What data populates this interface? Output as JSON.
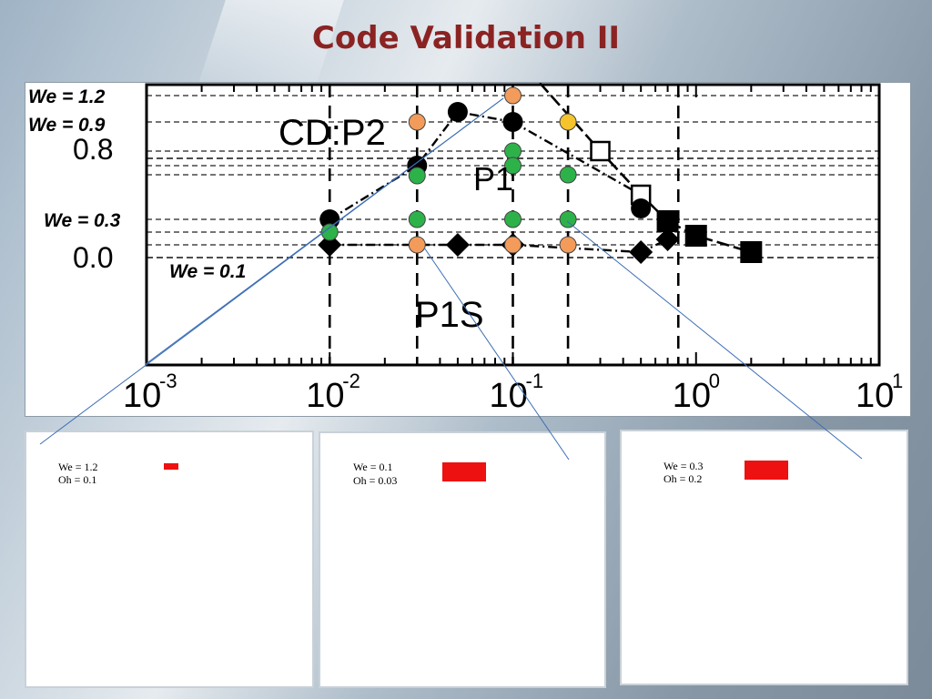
{
  "slide": {
    "title": "Code Validation II"
  },
  "chart_data": {
    "type": "scatter",
    "title": "",
    "xlabel": "",
    "ylabel": "",
    "x_scale": "log",
    "xlim": [
      0.001,
      10
    ],
    "x_ticks": [
      0.001,
      0.01,
      0.1,
      1,
      10
    ],
    "x_tick_labels": [
      {
        "base": "10",
        "exp": "-3"
      },
      {
        "base": "10",
        "exp": "-2"
      },
      {
        "base": "10",
        "exp": "-1"
      },
      {
        "base": "10",
        "exp": "0"
      },
      {
        "base": "10",
        "exp": "1"
      }
    ],
    "y_tick_labels": [
      {
        "value": 0.0,
        "label": "0.0"
      },
      {
        "value": 0.8,
        "label": "0.8"
      }
    ],
    "we_levels": [
      {
        "value": 1.2,
        "label": "We = 1.2"
      },
      {
        "value": 0.9,
        "label": "We = 0.9"
      },
      {
        "value": 0.3,
        "label": "We = 0.3"
      },
      {
        "value": 0.1,
        "label": "We = 0.1"
      }
    ],
    "region_labels": [
      "CD:P2",
      "P1",
      "P1S"
    ],
    "boundary_x": [
      0.01,
      0.03,
      0.1,
      0.2,
      0.8
    ],
    "reference_series": [
      {
        "marker": "circle-filled",
        "color": "#000000",
        "x": [
          0.01,
          0.03,
          0.05,
          0.1
        ],
        "y": [
          0.3,
          0.72,
          1.0,
          0.9
        ]
      },
      {
        "marker": "diamond-filled",
        "color": "#000000",
        "x": [
          0.01,
          0.05,
          0.1,
          0.5,
          0.7
        ],
        "y": [
          0.1,
          0.1,
          0.1,
          0.06,
          0.12
        ]
      },
      {
        "marker": "square-open",
        "color": "#000000",
        "x": [
          0.3,
          0.5
        ],
        "y": [
          0.8,
          0.5
        ]
      },
      {
        "marker": "square-filled",
        "color": "#000000",
        "x": [
          0.7,
          1.0,
          2.0
        ],
        "y": [
          0.28,
          0.15,
          0.06
        ]
      },
      {
        "marker": "circle-filled",
        "color": "#000000",
        "x": [
          0.5
        ],
        "y": [
          0.4
        ]
      }
    ],
    "code_points": [
      {
        "x": 0.03,
        "we": 0.9,
        "color": "#f29b5a"
      },
      {
        "x": 0.1,
        "we": 1.2,
        "color": "#f29b5a"
      },
      {
        "x": 0.2,
        "we": 0.9,
        "color": "#f5c42c"
      },
      {
        "x": 0.03,
        "we": 0.3,
        "color": "#2db24a"
      },
      {
        "x": 0.1,
        "we": 0.3,
        "color": "#2db24a"
      },
      {
        "x": 0.2,
        "we": 0.3,
        "color": "#2db24a"
      },
      {
        "x": 0.1,
        "we": 0.8,
        "color": "#2db24a"
      },
      {
        "x": 0.1,
        "we": 0.72,
        "color": "#2db24a"
      },
      {
        "x": 0.2,
        "we": 0.62,
        "color": "#2db24a"
      },
      {
        "x": 0.03,
        "we": 0.6,
        "color": "#2db24a"
      },
      {
        "x": 0.01,
        "we": 0.18,
        "color": "#2db24a"
      },
      {
        "x": 0.03,
        "we": 0.1,
        "color": "#f29b5a"
      },
      {
        "x": 0.1,
        "we": 0.1,
        "color": "#f29b5a"
      },
      {
        "x": 0.2,
        "we": 0.1,
        "color": "#f29b5a"
      }
    ]
  },
  "cases": [
    {
      "we": "We = 1.2",
      "oh": "Oh = 0.1",
      "bar_color": "#ee1111"
    },
    {
      "we": "We = 0.1",
      "oh": "Oh = 0.03",
      "bar_color": "#ee1111"
    },
    {
      "we": "We = 0.3",
      "oh": "Oh = 0.2",
      "bar_color": "#ee1111"
    }
  ],
  "colors": {
    "title": "#8b2323",
    "pointer_line": "#3a6db5"
  }
}
